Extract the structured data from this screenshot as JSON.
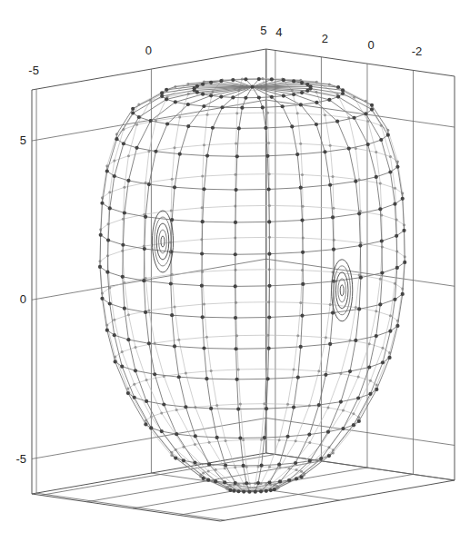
{
  "chart_data": {
    "type": "surface3d",
    "xlim": [
      -5.2,
      5
    ],
    "ylim": [
      -3.8,
      4.4
    ],
    "zlim": [
      -6.1,
      6.6
    ],
    "xticks": [
      -5,
      0,
      5
    ],
    "yticks": [
      4,
      2,
      0,
      -2
    ],
    "zticks": [
      5,
      0,
      -5
    ],
    "grid": true,
    "color": "#444444",
    "marker": "circle",
    "surface": {
      "z": [
        6.5,
        6.45,
        6.3,
        5.8,
        5.0,
        4.0,
        3.0,
        2.0,
        1.0,
        0,
        -1,
        -2,
        -3,
        -4,
        -5,
        -5.7,
        -6.1,
        -6.2
      ],
      "r": [
        0,
        1.8,
        2.8,
        3.7,
        4.2,
        4.5,
        4.65,
        4.7,
        4.72,
        4.65,
        4.5,
        4.25,
        3.85,
        3.3,
        2.5,
        1.6,
        0.8,
        0
      ]
    },
    "dimples": {
      "x": [
        -4.64,
        -0.74
      ],
      "y": [
        -0.74,
        -4.64
      ],
      "z": [
        2.3,
        0.68
      ]
    }
  }
}
